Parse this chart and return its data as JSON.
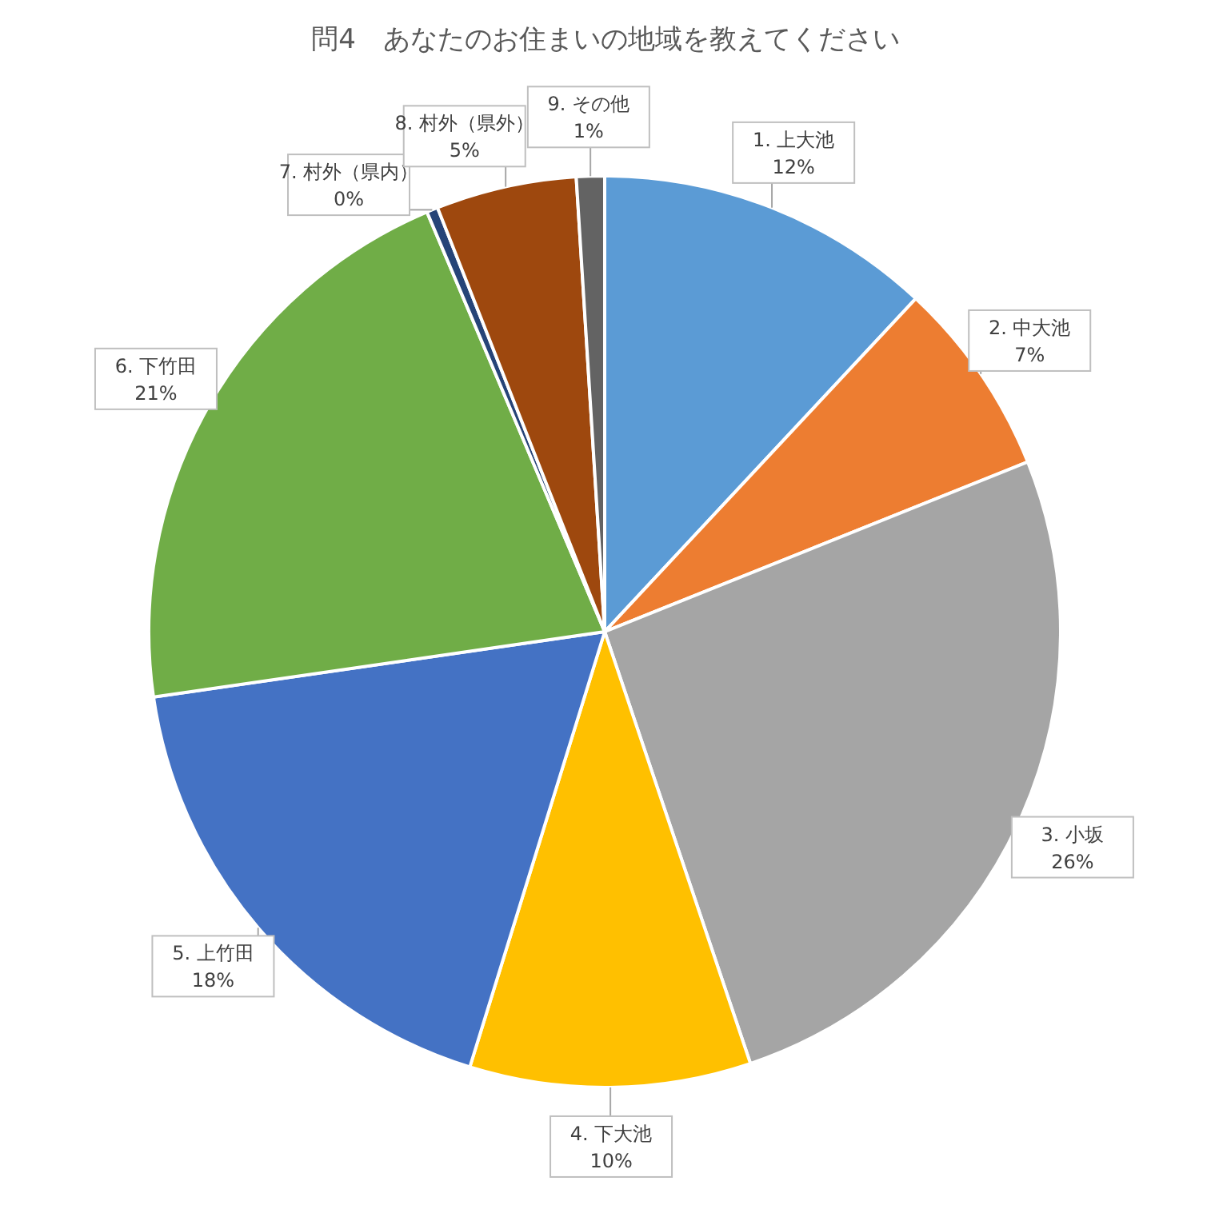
{
  "chart_data": {
    "type": "pie",
    "title": "問4　あなたのお住まいの地域を教えてください",
    "categories": [
      "1. 上大池",
      "2. 中大池",
      "3. 小坂",
      "4. 下大池",
      "5. 上竹田",
      "6. 下竹田",
      "7. 村外（県内）",
      "8. 村外（県外）",
      "9. その他"
    ],
    "values": [
      12,
      7,
      26,
      10,
      18,
      21,
      0.4,
      5,
      1
    ],
    "value_labels": [
      "12%",
      "7%",
      "26%",
      "10%",
      "18%",
      "21%",
      "0%",
      "5%",
      "1%"
    ],
    "colors": [
      "#5b9bd5",
      "#ed7d31",
      "#a5a5a5",
      "#ffc000",
      "#4472c4",
      "#70ad47",
      "#264478",
      "#9e480e",
      "#636363"
    ],
    "legend": false
  }
}
